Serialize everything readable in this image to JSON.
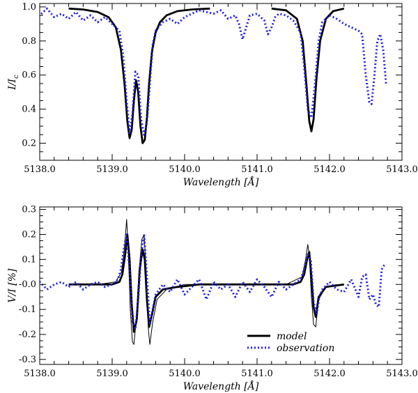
{
  "colors": {
    "model": "#000000",
    "observation": "#1f1fe0",
    "background": "#ffffff"
  },
  "chart_data": [
    {
      "type": "line",
      "xlabel": "Wavelength [Å]",
      "ylabel": "I/I_c",
      "ylabel_main": "I/I",
      "ylabel_sub": "c",
      "xlim": [
        5138.0,
        5143.0
      ],
      "ylim": [
        0.1,
        1.02
      ],
      "xticks": [
        5138.0,
        5139.0,
        5140.0,
        5141.0,
        5142.0,
        5143.0
      ],
      "xtick_labels": [
        "5138.0",
        "5139.0",
        "5140.0",
        "5141.0",
        "5142.0",
        "5143.0"
      ],
      "yticks": [
        0.2,
        0.4,
        0.6,
        0.8,
        1.0
      ],
      "ytick_labels": [
        "0.2",
        "0.4",
        "0.6",
        "0.8",
        "1.0"
      ],
      "series": [
        {
          "key": "model",
          "style": "solid-thick",
          "segments": [
            {
              "x": [
                5138.4,
                5138.6,
                5138.8,
                5138.95,
                5139.05,
                5139.12,
                5139.17,
                5139.21,
                5139.24,
                5139.27,
                5139.3,
                5139.33,
                5139.36,
                5139.39,
                5139.42,
                5139.45,
                5139.48,
                5139.51,
                5139.55,
                5139.6,
                5139.66,
                5139.75,
                5139.9,
                5140.1,
                5140.35
              ],
              "y": [
                0.99,
                0.985,
                0.97,
                0.94,
                0.88,
                0.75,
                0.55,
                0.33,
                0.23,
                0.28,
                0.45,
                0.57,
                0.5,
                0.3,
                0.2,
                0.22,
                0.35,
                0.55,
                0.74,
                0.85,
                0.91,
                0.95,
                0.975,
                0.985,
                0.99
              ]
            },
            {
              "x": [
                5141.2,
                5141.4,
                5141.55,
                5141.63,
                5141.68,
                5141.72,
                5141.75,
                5141.78,
                5141.82,
                5141.87,
                5141.95,
                5142.05,
                5142.2
              ],
              "y": [
                0.99,
                0.98,
                0.93,
                0.8,
                0.55,
                0.33,
                0.27,
                0.34,
                0.58,
                0.8,
                0.93,
                0.975,
                0.99
              ]
            }
          ]
        },
        {
          "key": "observation",
          "style": "dotted",
          "x": [
            5137.9,
            5138.0,
            5138.1,
            5138.2,
            5138.3,
            5138.4,
            5138.5,
            5138.6,
            5138.7,
            5138.8,
            5138.9,
            5139.0,
            5139.1,
            5139.15,
            5139.2,
            5139.24,
            5139.28,
            5139.32,
            5139.36,
            5139.4,
            5139.44,
            5139.48,
            5139.52,
            5139.56,
            5139.6,
            5139.7,
            5139.8,
            5139.9,
            5140.0,
            5140.1,
            5140.2,
            5140.3,
            5140.4,
            5140.5,
            5140.6,
            5140.7,
            5140.75,
            5140.8,
            5140.85,
            5140.9,
            5141.0,
            5141.1,
            5141.15,
            5141.2,
            5141.25,
            5141.3,
            5141.4,
            5141.5,
            5141.6,
            5141.65,
            5141.7,
            5141.75,
            5141.8,
            5141.85,
            5141.9,
            5142.0,
            5142.1,
            5142.2,
            5142.3,
            5142.4,
            5142.45,
            5142.5,
            5142.55,
            5142.58,
            5142.62,
            5142.66,
            5142.7,
            5142.74,
            5142.78
          ],
          "y": [
            0.92,
            0.95,
            0.99,
            0.94,
            0.96,
            0.93,
            0.97,
            0.92,
            0.95,
            0.91,
            0.94,
            0.9,
            0.86,
            0.72,
            0.45,
            0.26,
            0.37,
            0.62,
            0.6,
            0.34,
            0.25,
            0.32,
            0.55,
            0.78,
            0.86,
            0.91,
            0.93,
            0.9,
            0.94,
            0.96,
            0.98,
            0.97,
            0.96,
            0.98,
            0.93,
            0.95,
            0.9,
            0.81,
            0.88,
            0.95,
            0.96,
            0.92,
            0.84,
            0.88,
            0.94,
            0.96,
            0.95,
            0.92,
            0.85,
            0.65,
            0.4,
            0.35,
            0.55,
            0.8,
            0.91,
            0.95,
            0.93,
            0.9,
            0.88,
            0.86,
            0.84,
            0.6,
            0.44,
            0.43,
            0.6,
            0.8,
            0.84,
            0.75,
            0.55
          ]
        }
      ]
    },
    {
      "type": "line",
      "xlabel": "Wavelength [Å]",
      "ylabel": "V/I [%]",
      "xlim": [
        5138.0,
        5143.0
      ],
      "ylim": [
        -0.32,
        0.31
      ],
      "xticks": [
        5138.0,
        5139.0,
        5140.0,
        5141.0,
        5142.0,
        5143.0
      ],
      "xtick_labels": [
        "5138.0",
        "5139.0",
        "5140.0",
        "5141.0",
        "5142.0",
        "5143.0"
      ],
      "yticks": [
        -0.3,
        -0.2,
        -0.1,
        0.0,
        0.1,
        0.2,
        0.3
      ],
      "ytick_labels": [
        "-0.3",
        "-0.2",
        "-0.1",
        "-0.0",
        "0.1",
        "0.2",
        "0.3"
      ],
      "legend": {
        "position": "bottom-right",
        "entries": [
          "model",
          "observation"
        ]
      },
      "series": [
        {
          "key": "model",
          "name": "model",
          "style": "solid-thick",
          "x": [
            5138.4,
            5138.8,
            5139.0,
            5139.1,
            5139.14,
            5139.18,
            5139.21,
            5139.24,
            5139.27,
            5139.3,
            5139.34,
            5139.38,
            5139.42,
            5139.45,
            5139.48,
            5139.51,
            5139.55,
            5139.6,
            5139.7,
            5139.9,
            5140.2,
            5140.35,
            5141.3,
            5141.5,
            5141.6,
            5141.65,
            5141.69,
            5141.72,
            5141.75,
            5141.78,
            5141.81,
            5141.85,
            5141.95,
            5142.2
          ],
          "y": [
            0.0,
            0.0,
            0.0,
            0.01,
            0.04,
            0.12,
            0.2,
            0.1,
            -0.08,
            -0.19,
            -0.14,
            0.06,
            0.14,
            0.1,
            -0.06,
            -0.17,
            -0.12,
            -0.05,
            -0.02,
            -0.01,
            0.0,
            0.0,
            0.0,
            0.0,
            0.01,
            0.04,
            0.1,
            0.13,
            0.03,
            -0.09,
            -0.13,
            -0.05,
            -0.01,
            0.0
          ]
        },
        {
          "key": "model-thin",
          "style": "solid-thin",
          "x": [
            5138.8,
            5139.05,
            5139.13,
            5139.17,
            5139.2,
            5139.22,
            5139.25,
            5139.28,
            5139.3,
            5139.33,
            5139.37,
            5139.41,
            5139.44,
            5139.47,
            5139.5,
            5139.52,
            5139.56,
            5139.62,
            5139.75,
            5140.0,
            5141.4,
            5141.62,
            5141.67,
            5141.7,
            5141.72,
            5141.75,
            5141.78,
            5141.81,
            5141.85,
            5141.95,
            5142.1
          ],
          "y": [
            0.0,
            0.01,
            0.05,
            0.15,
            0.26,
            0.15,
            -0.1,
            -0.23,
            -0.24,
            -0.15,
            0.05,
            0.18,
            0.2,
            0.05,
            -0.18,
            -0.24,
            -0.15,
            -0.06,
            -0.02,
            0.0,
            0.0,
            0.03,
            0.1,
            0.16,
            0.12,
            -0.05,
            -0.16,
            -0.17,
            -0.06,
            -0.01,
            0.0
          ]
        },
        {
          "key": "observation",
          "name": "observation",
          "style": "dotted",
          "x": [
            5137.9,
            5138.0,
            5138.1,
            5138.2,
            5138.3,
            5138.4,
            5138.5,
            5138.6,
            5138.7,
            5138.8,
            5138.9,
            5139.0,
            5139.08,
            5139.12,
            5139.16,
            5139.2,
            5139.24,
            5139.28,
            5139.32,
            5139.36,
            5139.4,
            5139.44,
            5139.48,
            5139.52,
            5139.56,
            5139.6,
            5139.7,
            5139.8,
            5139.9,
            5140.0,
            5140.1,
            5140.2,
            5140.3,
            5140.4,
            5140.5,
            5140.6,
            5140.7,
            5140.8,
            5140.9,
            5141.0,
            5141.1,
            5141.2,
            5141.3,
            5141.4,
            5141.5,
            5141.6,
            5141.65,
            5141.7,
            5141.74,
            5141.78,
            5141.82,
            5141.86,
            5141.9,
            5142.0,
            5142.1,
            5142.2,
            5142.3,
            5142.4,
            5142.45,
            5142.5,
            5142.55,
            5142.6,
            5142.64,
            5142.68,
            5142.72,
            5142.76
          ],
          "y": [
            0.0,
            0.01,
            -0.02,
            0.0,
            0.01,
            -0.01,
            0.01,
            -0.02,
            0.0,
            0.01,
            -0.01,
            0.0,
            0.02,
            0.06,
            0.14,
            0.2,
            0.06,
            -0.15,
            -0.18,
            -0.06,
            0.12,
            0.2,
            0.03,
            -0.16,
            -0.1,
            -0.04,
            0.0,
            -0.03,
            0.02,
            -0.04,
            -0.01,
            0.02,
            -0.06,
            0.01,
            -0.02,
            0.0,
            -0.05,
            0.01,
            -0.03,
            0.02,
            -0.01,
            -0.05,
            0.01,
            -0.02,
            0.0,
            0.02,
            0.06,
            0.12,
            0.1,
            -0.07,
            -0.12,
            -0.05,
            -0.02,
            0.01,
            -0.02,
            -0.03,
            0.02,
            -0.05,
            0.03,
            0.04,
            -0.06,
            -0.04,
            -0.08,
            -0.09,
            0.06,
            0.08
          ]
        }
      ]
    }
  ]
}
